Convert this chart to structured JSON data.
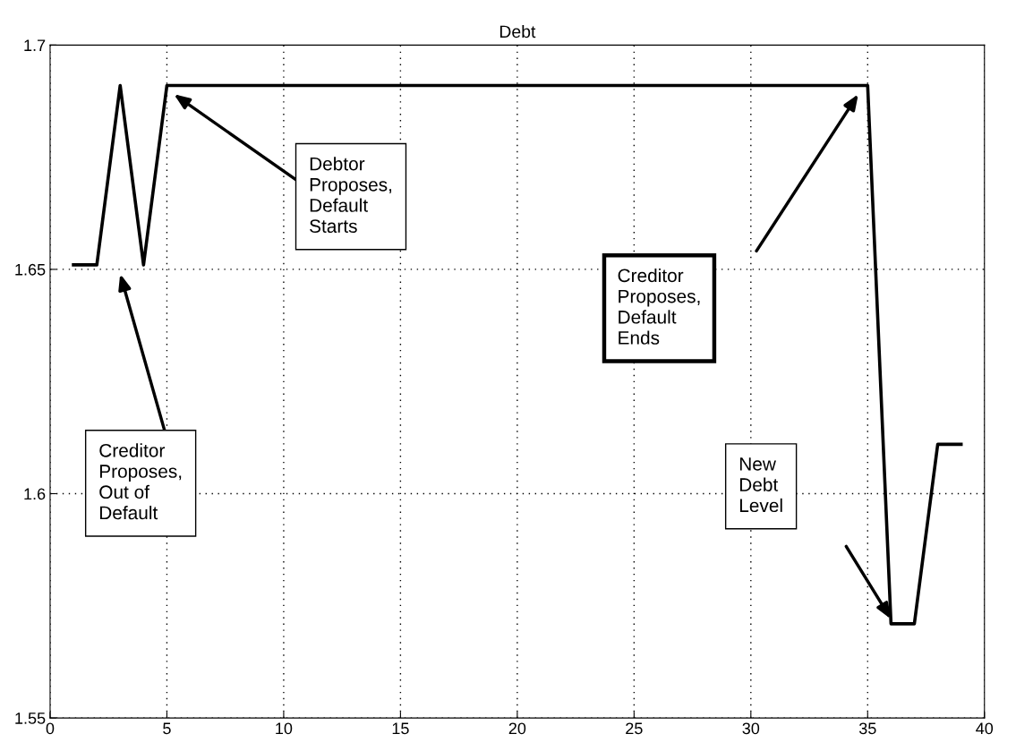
{
  "chart_data": {
    "type": "line",
    "title": "Debt",
    "x": [
      1,
      2,
      3,
      4,
      5,
      6,
      7,
      8,
      9,
      10,
      11,
      12,
      13,
      14,
      15,
      16,
      17,
      18,
      19,
      20,
      21,
      22,
      23,
      24,
      25,
      26,
      27,
      28,
      29,
      30,
      31,
      32,
      33,
      34,
      35,
      36,
      37,
      38,
      39
    ],
    "series": [
      {
        "color": "#000000",
        "values": [
          1.651,
          1.651,
          1.691,
          1.651,
          1.691,
          1.691,
          1.691,
          1.691,
          1.691,
          1.691,
          1.691,
          1.691,
          1.691,
          1.691,
          1.691,
          1.691,
          1.691,
          1.691,
          1.691,
          1.691,
          1.691,
          1.691,
          1.691,
          1.691,
          1.691,
          1.691,
          1.691,
          1.691,
          1.691,
          1.691,
          1.691,
          1.691,
          1.691,
          1.691,
          1.691,
          1.571,
          1.571,
          1.611,
          1.611
        ]
      }
    ],
    "xlim": [
      0,
      40
    ],
    "xticks": [
      0,
      5,
      10,
      15,
      20,
      25,
      30,
      35,
      40
    ],
    "ylim": [
      1.55,
      1.7
    ],
    "yticks": [
      1.55,
      1.6,
      1.65,
      1.7
    ],
    "grid": true,
    "marker": "none",
    "line_style": "solid",
    "legend": false,
    "annotations": [
      "Creditor\nProposes,\nOut of\nDefault",
      "Debtor\nProposes,\nDefault\nStarts",
      "Creditor\nProposes,\nDefault\nEnds",
      "New\nDebt\nLevel"
    ]
  }
}
